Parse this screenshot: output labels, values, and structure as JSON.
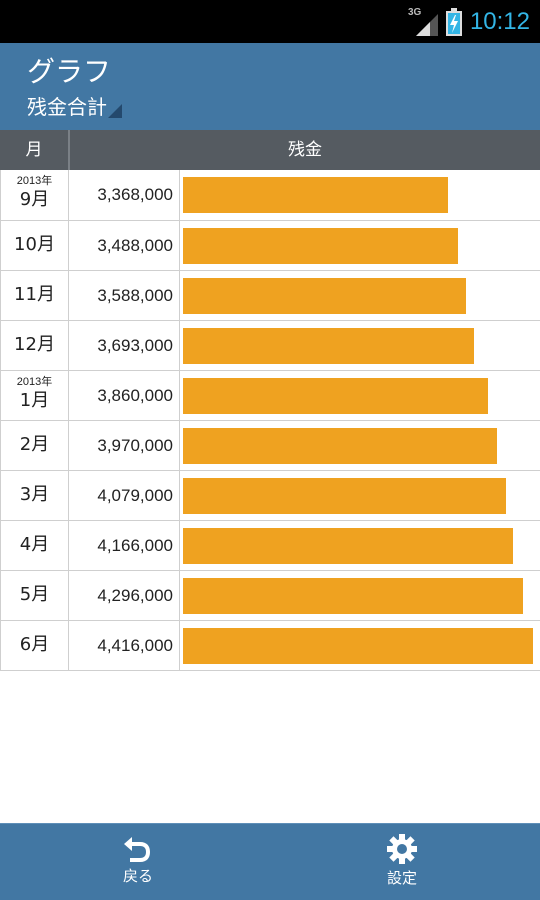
{
  "status_bar": {
    "network": "3G",
    "time": "10:12",
    "icons": [
      "signal-icon",
      "battery-charging-icon"
    ]
  },
  "action_bar": {
    "title": "グラフ",
    "spinner_value": "残金合計"
  },
  "table": {
    "headers": {
      "month": "月",
      "balance": "残金"
    },
    "rows": [
      {
        "year": "2013年",
        "month": "9月",
        "amount": "3,368,000",
        "value": 3368000
      },
      {
        "year": "",
        "month": "10月",
        "amount": "3,488,000",
        "value": 3488000
      },
      {
        "year": "",
        "month": "11月",
        "amount": "3,588,000",
        "value": 3588000
      },
      {
        "year": "",
        "month": "12月",
        "amount": "3,693,000",
        "value": 3693000
      },
      {
        "year": "2013年",
        "month": "1月",
        "amount": "3,860,000",
        "value": 3860000
      },
      {
        "year": "",
        "month": "2月",
        "amount": "3,970,000",
        "value": 3970000
      },
      {
        "year": "",
        "month": "3月",
        "amount": "4,079,000",
        "value": 4079000
      },
      {
        "year": "",
        "month": "4月",
        "amount": "4,166,000",
        "value": 4166000
      },
      {
        "year": "",
        "month": "5月",
        "amount": "4,296,000",
        "value": 4296000
      },
      {
        "year": "",
        "month": "6月",
        "amount": "4,416,000",
        "value": 4416000
      }
    ]
  },
  "bottom_bar": {
    "back_label": "戻る",
    "back_icon": "undo-icon",
    "settings_label": "設定",
    "settings_icon": "gear-icon"
  },
  "colors": {
    "status_bar": "#000000",
    "clock": "#33b5e5",
    "action_bar": "#4277a3",
    "table_header": "#555b61",
    "bar": "#efa220"
  }
}
